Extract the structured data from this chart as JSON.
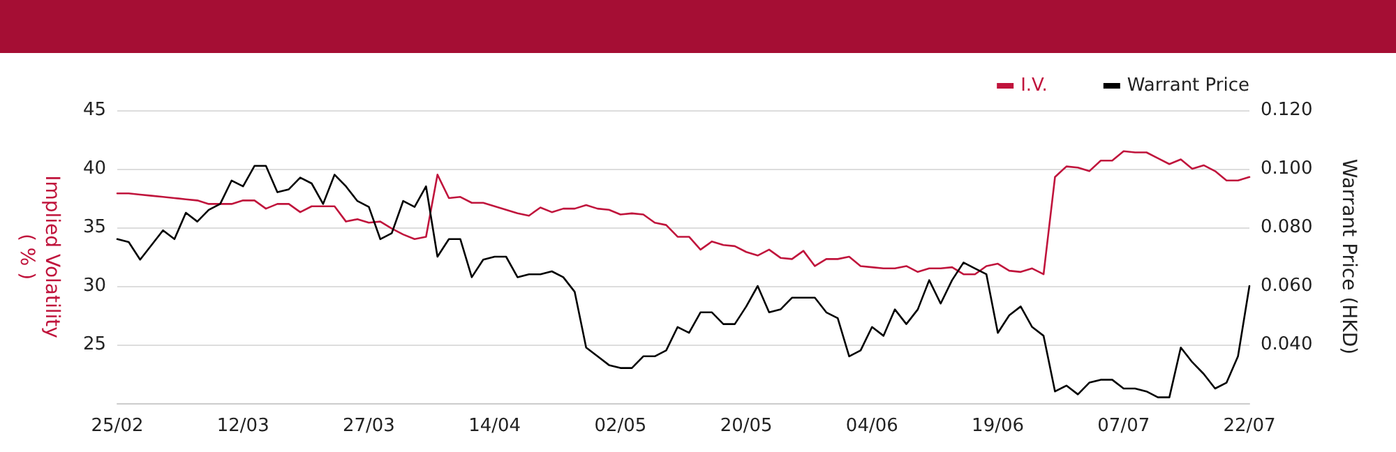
{
  "chart_data": {
    "type": "line",
    "ylabel": "Implied Volatility\n( % )",
    "y2label": "Warrant Price (HKD)",
    "categories": [
      "25/02",
      null,
      null,
      null,
      null,
      null,
      null,
      null,
      null,
      null,
      null,
      "12/03",
      null,
      null,
      null,
      null,
      null,
      null,
      null,
      null,
      null,
      null,
      "27/03",
      null,
      null,
      null,
      null,
      null,
      null,
      null,
      null,
      null,
      null,
      "14/04",
      null,
      null,
      null,
      null,
      null,
      null,
      null,
      null,
      null,
      null,
      "02/05",
      null,
      null,
      null,
      null,
      null,
      null,
      null,
      null,
      null,
      null,
      "20/05",
      null,
      null,
      null,
      null,
      null,
      null,
      null,
      null,
      null,
      null,
      "04/06",
      null,
      null,
      null,
      null,
      null,
      null,
      null,
      null,
      null,
      null,
      "19/06",
      null,
      null,
      null,
      null,
      null,
      null,
      null,
      null,
      null,
      null,
      "07/07",
      null,
      null,
      null,
      null,
      null,
      null,
      null,
      null,
      null,
      null,
      "22/07"
    ],
    "series": [
      {
        "name": "I.V.",
        "color": "#c0143c",
        "values": [
          37.9,
          37.9,
          37.8,
          37.7,
          37.6,
          37.5,
          37.4,
          37.3,
          37.0,
          37.0,
          37.0,
          37.3,
          37.3,
          36.6,
          37.0,
          37.0,
          36.3,
          36.8,
          36.8,
          36.8,
          35.5,
          35.7,
          35.4,
          35.5,
          34.9,
          34.4,
          34.0,
          34.2,
          39.5,
          37.5,
          37.6,
          37.1,
          37.1,
          36.8,
          36.5,
          36.2,
          36.0,
          36.7,
          36.3,
          36.6,
          36.6,
          36.9,
          36.6,
          36.5,
          36.1,
          36.2,
          36.1,
          35.4,
          35.2,
          34.2,
          34.2,
          33.1,
          33.8,
          33.5,
          33.4,
          32.9,
          32.6,
          33.1,
          32.4,
          32.3,
          33.0,
          31.7,
          32.3,
          32.3,
          32.5,
          31.7,
          31.6,
          31.5,
          31.5,
          31.7,
          31.2,
          31.5,
          31.5,
          31.6,
          31.0,
          31.0,
          31.7,
          31.9,
          31.3,
          31.2,
          31.5,
          31.0,
          39.3,
          40.2,
          40.1,
          39.8,
          40.7,
          40.7,
          41.5,
          41.4,
          41.4,
          40.9,
          40.4,
          40.8,
          40.0,
          40.3,
          39.8,
          39.0,
          39.0,
          39.3
        ]
      },
      {
        "name": "Warrant Price",
        "color": "#000000",
        "axis": "y2",
        "values": [
          0.076,
          0.075,
          0.069,
          0.074,
          0.079,
          0.076,
          0.085,
          0.082,
          0.086,
          0.088,
          0.096,
          0.094,
          0.101,
          0.101,
          0.092,
          0.093,
          0.097,
          0.095,
          0.088,
          0.098,
          0.094,
          0.089,
          0.087,
          0.076,
          0.078,
          0.089,
          0.087,
          0.094,
          0.07,
          0.076,
          0.076,
          0.063,
          0.069,
          0.07,
          0.07,
          0.063,
          0.064,
          0.064,
          0.065,
          0.063,
          0.058,
          0.039,
          0.036,
          0.033,
          0.032,
          0.032,
          0.036,
          0.036,
          0.038,
          0.046,
          0.044,
          0.051,
          0.051,
          0.047,
          0.047,
          0.053,
          0.06,
          0.051,
          0.052,
          0.056,
          0.056,
          0.056,
          0.051,
          0.049,
          0.036,
          0.038,
          0.046,
          0.043,
          0.052,
          0.047,
          0.052,
          0.062,
          0.054,
          0.062,
          0.068,
          0.066,
          0.064,
          0.044,
          0.05,
          0.053,
          0.046,
          0.043,
          0.024,
          0.026,
          0.023,
          0.027,
          0.028,
          0.028,
          0.025,
          0.025,
          0.024,
          0.022,
          0.022,
          0.039,
          0.034,
          0.03,
          0.025,
          0.027,
          0.036,
          0.06
        ]
      }
    ],
    "ylim": [
      20,
      45
    ],
    "yticks": [
      {
        "value": 20,
        "label": null
      },
      25,
      30,
      35,
      40,
      45
    ],
    "y2lim": [
      0.02,
      0.12
    ],
    "y2ticks": [
      {
        "value": 0.02,
        "label": null
      },
      {
        "value": 0.04,
        "label": "0.040"
      },
      {
        "value": 0.06,
        "label": "0.060"
      },
      {
        "value": 0.08,
        "label": "0.080"
      },
      {
        "value": 0.1,
        "label": "0.100"
      },
      {
        "value": 0.12,
        "label": "0.120"
      }
    ],
    "grid": "y",
    "legend": "top right",
    "marker": "none",
    "line_style": "solid"
  }
}
